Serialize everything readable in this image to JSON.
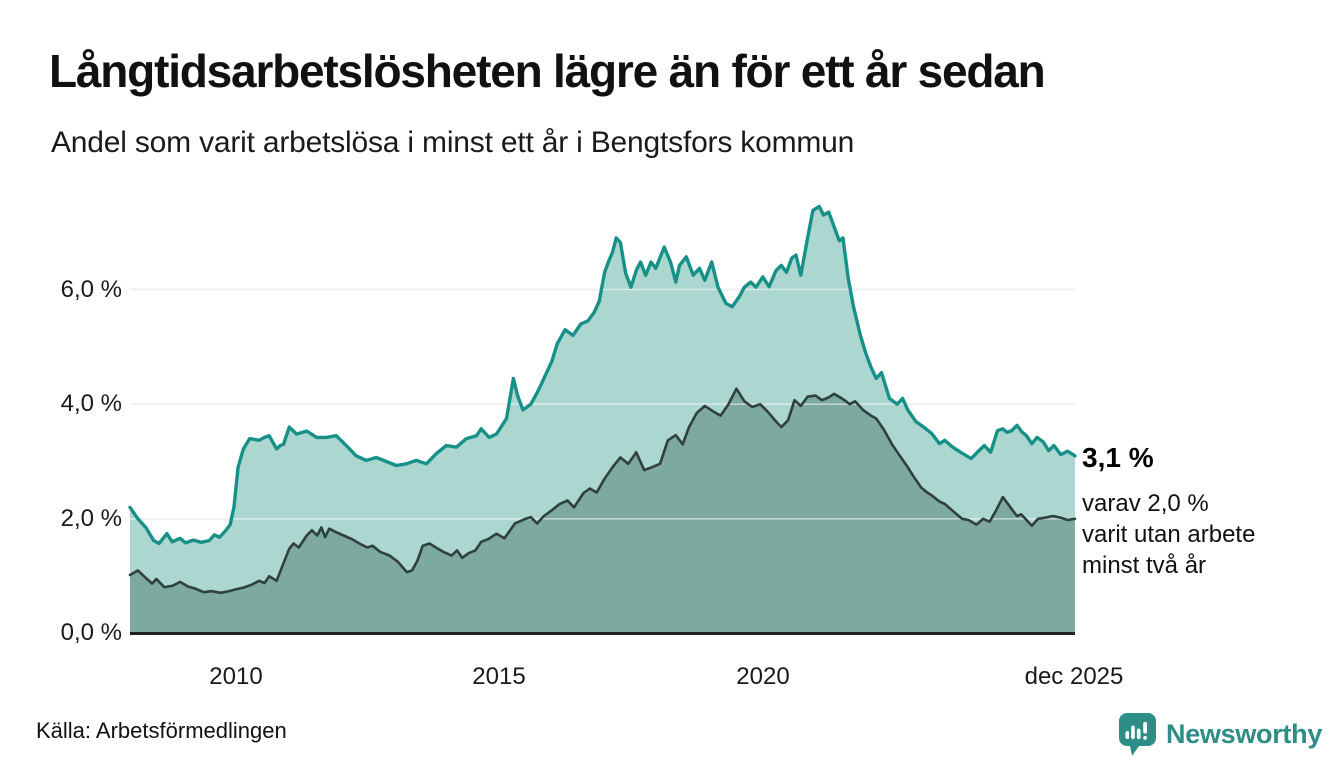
{
  "header": {
    "title": "Långtidsarbetslösheten lägre än för ett år sedan",
    "subtitle": "Andel som varit arbetslösa i minst ett år i Bengtsfors kommun"
  },
  "chart_data": {
    "type": "area",
    "title": "Långtidsarbetslösheten lägre än för ett år sedan",
    "subtitle": "Andel som varit arbetslösa i minst ett år i Bengtsfors kommun",
    "xlabel": "",
    "ylabel": "",
    "legend": "none",
    "grid": true,
    "x_axis": {
      "range": [
        2008,
        2025.92
      ],
      "ticks": [
        {
          "label": "2010",
          "year": 2010
        },
        {
          "label": "2015",
          "year": 2015
        },
        {
          "label": "2020",
          "year": 2020
        },
        {
          "label": "dec 2025",
          "year": 2025.92
        }
      ]
    },
    "y_axis": {
      "unit": "%",
      "range": [
        0,
        7.6
      ],
      "gridlines": [
        2,
        4,
        6
      ],
      "ticks": [
        {
          "label": "0,0 %",
          "value": 0
        },
        {
          "label": "2,0 %",
          "value": 2
        },
        {
          "label": "4,0 %",
          "value": 4
        },
        {
          "label": "6,0 %",
          "value": 6
        }
      ]
    },
    "series": [
      {
        "name": "Arbetslösa minst ett år",
        "stroke": "#179188",
        "fill": "#abd7d0",
        "last_value_label": "3,1 %",
        "points": [
          [
            2008.0,
            2.2
          ],
          [
            2008.15,
            2.0
          ],
          [
            2008.3,
            1.85
          ],
          [
            2008.45,
            1.62
          ],
          [
            2008.55,
            1.57
          ],
          [
            2008.7,
            1.74
          ],
          [
            2008.8,
            1.6
          ],
          [
            2008.95,
            1.66
          ],
          [
            2009.05,
            1.58
          ],
          [
            2009.2,
            1.63
          ],
          [
            2009.35,
            1.59
          ],
          [
            2009.5,
            1.62
          ],
          [
            2009.6,
            1.72
          ],
          [
            2009.7,
            1.68
          ],
          [
            2009.8,
            1.78
          ],
          [
            2009.9,
            1.9
          ],
          [
            2009.97,
            2.2
          ],
          [
            2010.05,
            2.9
          ],
          [
            2010.15,
            3.22
          ],
          [
            2010.27,
            3.4
          ],
          [
            2010.45,
            3.37
          ],
          [
            2010.55,
            3.42
          ],
          [
            2010.64,
            3.45
          ],
          [
            2010.78,
            3.22
          ],
          [
            2010.85,
            3.28
          ],
          [
            2010.91,
            3.3
          ],
          [
            2011.02,
            3.6
          ],
          [
            2011.16,
            3.48
          ],
          [
            2011.35,
            3.53
          ],
          [
            2011.54,
            3.42
          ],
          [
            2011.72,
            3.42
          ],
          [
            2011.91,
            3.45
          ],
          [
            2012.1,
            3.28
          ],
          [
            2012.29,
            3.1
          ],
          [
            2012.48,
            3.02
          ],
          [
            2012.67,
            3.07
          ],
          [
            2012.86,
            3.0
          ],
          [
            2013.05,
            2.93
          ],
          [
            2013.24,
            2.96
          ],
          [
            2013.43,
            3.02
          ],
          [
            2013.62,
            2.96
          ],
          [
            2013.81,
            3.14
          ],
          [
            2014.0,
            3.28
          ],
          [
            2014.19,
            3.25
          ],
          [
            2014.38,
            3.4
          ],
          [
            2014.57,
            3.45
          ],
          [
            2014.66,
            3.57
          ],
          [
            2014.81,
            3.42
          ],
          [
            2014.95,
            3.48
          ],
          [
            2015.14,
            3.75
          ],
          [
            2015.27,
            4.45
          ],
          [
            2015.35,
            4.15
          ],
          [
            2015.45,
            3.9
          ],
          [
            2015.6,
            4.0
          ],
          [
            2015.72,
            4.2
          ],
          [
            2015.8,
            4.35
          ],
          [
            2015.9,
            4.55
          ],
          [
            2016.0,
            4.75
          ],
          [
            2016.1,
            5.05
          ],
          [
            2016.25,
            5.3
          ],
          [
            2016.4,
            5.2
          ],
          [
            2016.55,
            5.4
          ],
          [
            2016.68,
            5.45
          ],
          [
            2016.8,
            5.6
          ],
          [
            2016.9,
            5.8
          ],
          [
            2017.0,
            6.3
          ],
          [
            2017.08,
            6.5
          ],
          [
            2017.15,
            6.65
          ],
          [
            2017.22,
            6.9
          ],
          [
            2017.3,
            6.82
          ],
          [
            2017.4,
            6.28
          ],
          [
            2017.5,
            6.04
          ],
          [
            2017.6,
            6.33
          ],
          [
            2017.68,
            6.48
          ],
          [
            2017.78,
            6.25
          ],
          [
            2017.88,
            6.48
          ],
          [
            2017.97,
            6.37
          ],
          [
            2018.13,
            6.74
          ],
          [
            2018.25,
            6.48
          ],
          [
            2018.35,
            6.13
          ],
          [
            2018.42,
            6.42
          ],
          [
            2018.55,
            6.57
          ],
          [
            2018.68,
            6.25
          ],
          [
            2018.8,
            6.37
          ],
          [
            2018.9,
            6.16
          ],
          [
            2019.03,
            6.48
          ],
          [
            2019.15,
            6.04
          ],
          [
            2019.3,
            5.76
          ],
          [
            2019.42,
            5.7
          ],
          [
            2019.55,
            5.87
          ],
          [
            2019.65,
            6.04
          ],
          [
            2019.77,
            6.13
          ],
          [
            2019.87,
            6.04
          ],
          [
            2020.0,
            6.22
          ],
          [
            2020.12,
            6.05
          ],
          [
            2020.25,
            6.33
          ],
          [
            2020.35,
            6.42
          ],
          [
            2020.45,
            6.3
          ],
          [
            2020.55,
            6.55
          ],
          [
            2020.63,
            6.6
          ],
          [
            2020.72,
            6.25
          ],
          [
            2020.85,
            6.9
          ],
          [
            2020.95,
            7.38
          ],
          [
            2021.07,
            7.45
          ],
          [
            2021.15,
            7.3
          ],
          [
            2021.25,
            7.35
          ],
          [
            2021.35,
            7.1
          ],
          [
            2021.45,
            6.85
          ],
          [
            2021.52,
            6.9
          ],
          [
            2021.62,
            6.2
          ],
          [
            2021.72,
            5.7
          ],
          [
            2021.85,
            5.2
          ],
          [
            2021.95,
            4.9
          ],
          [
            2022.05,
            4.65
          ],
          [
            2022.15,
            4.45
          ],
          [
            2022.25,
            4.55
          ],
          [
            2022.4,
            4.1
          ],
          [
            2022.55,
            4.0
          ],
          [
            2022.65,
            4.1
          ],
          [
            2022.75,
            3.9
          ],
          [
            2022.9,
            3.7
          ],
          [
            2023.05,
            3.6
          ],
          [
            2023.2,
            3.49
          ],
          [
            2023.35,
            3.31
          ],
          [
            2023.45,
            3.37
          ],
          [
            2023.6,
            3.25
          ],
          [
            2023.75,
            3.16
          ],
          [
            2023.95,
            3.05
          ],
          [
            2024.1,
            3.19
          ],
          [
            2024.2,
            3.28
          ],
          [
            2024.32,
            3.16
          ],
          [
            2024.45,
            3.54
          ],
          [
            2024.55,
            3.57
          ],
          [
            2024.63,
            3.51
          ],
          [
            2024.72,
            3.54
          ],
          [
            2024.82,
            3.63
          ],
          [
            2024.92,
            3.51
          ],
          [
            2025.0,
            3.45
          ],
          [
            2025.1,
            3.31
          ],
          [
            2025.2,
            3.42
          ],
          [
            2025.32,
            3.34
          ],
          [
            2025.42,
            3.19
          ],
          [
            2025.52,
            3.28
          ],
          [
            2025.65,
            3.12
          ],
          [
            2025.78,
            3.18
          ],
          [
            2025.92,
            3.1
          ]
        ]
      },
      {
        "name": "Arbetslösa minst två år",
        "stroke": "#2f403e",
        "fill": "#7ea9a1",
        "last_value_label": "2,0 %",
        "points": [
          [
            2008.0,
            1.02
          ],
          [
            2008.15,
            1.1
          ],
          [
            2008.3,
            0.97
          ],
          [
            2008.42,
            0.87
          ],
          [
            2008.5,
            0.95
          ],
          [
            2008.65,
            0.81
          ],
          [
            2008.8,
            0.83
          ],
          [
            2008.95,
            0.9
          ],
          [
            2009.1,
            0.82
          ],
          [
            2009.25,
            0.78
          ],
          [
            2009.4,
            0.72
          ],
          [
            2009.55,
            0.74
          ],
          [
            2009.72,
            0.71
          ],
          [
            2009.88,
            0.74
          ],
          [
            2010.0,
            0.77
          ],
          [
            2010.15,
            0.8
          ],
          [
            2010.3,
            0.85
          ],
          [
            2010.45,
            0.92
          ],
          [
            2010.55,
            0.88
          ],
          [
            2010.64,
            1.0
          ],
          [
            2010.78,
            0.92
          ],
          [
            2010.9,
            1.2
          ],
          [
            2011.02,
            1.48
          ],
          [
            2011.1,
            1.57
          ],
          [
            2011.2,
            1.5
          ],
          [
            2011.35,
            1.71
          ],
          [
            2011.45,
            1.8
          ],
          [
            2011.55,
            1.71
          ],
          [
            2011.63,
            1.85
          ],
          [
            2011.7,
            1.68
          ],
          [
            2011.78,
            1.83
          ],
          [
            2011.9,
            1.77
          ],
          [
            2012.05,
            1.71
          ],
          [
            2012.2,
            1.65
          ],
          [
            2012.35,
            1.57
          ],
          [
            2012.5,
            1.5
          ],
          [
            2012.6,
            1.53
          ],
          [
            2012.75,
            1.42
          ],
          [
            2012.92,
            1.36
          ],
          [
            2013.08,
            1.25
          ],
          [
            2013.25,
            1.07
          ],
          [
            2013.35,
            1.1
          ],
          [
            2013.45,
            1.27
          ],
          [
            2013.55,
            1.53
          ],
          [
            2013.68,
            1.57
          ],
          [
            2013.8,
            1.5
          ],
          [
            2013.95,
            1.42
          ],
          [
            2014.1,
            1.36
          ],
          [
            2014.2,
            1.45
          ],
          [
            2014.3,
            1.32
          ],
          [
            2014.42,
            1.4
          ],
          [
            2014.55,
            1.45
          ],
          [
            2014.66,
            1.6
          ],
          [
            2014.8,
            1.65
          ],
          [
            2014.95,
            1.74
          ],
          [
            2015.1,
            1.66
          ],
          [
            2015.3,
            1.92
          ],
          [
            2015.5,
            2.0
          ],
          [
            2015.6,
            2.03
          ],
          [
            2015.72,
            1.92
          ],
          [
            2015.85,
            2.05
          ],
          [
            2016.0,
            2.15
          ],
          [
            2016.15,
            2.26
          ],
          [
            2016.3,
            2.32
          ],
          [
            2016.42,
            2.2
          ],
          [
            2016.6,
            2.45
          ],
          [
            2016.72,
            2.53
          ],
          [
            2016.85,
            2.46
          ],
          [
            2017.0,
            2.7
          ],
          [
            2017.15,
            2.9
          ],
          [
            2017.3,
            3.07
          ],
          [
            2017.45,
            2.96
          ],
          [
            2017.6,
            3.16
          ],
          [
            2017.75,
            2.85
          ],
          [
            2017.9,
            2.9
          ],
          [
            2018.05,
            2.96
          ],
          [
            2018.2,
            3.37
          ],
          [
            2018.35,
            3.46
          ],
          [
            2018.48,
            3.3
          ],
          [
            2018.6,
            3.6
          ],
          [
            2018.75,
            3.85
          ],
          [
            2018.9,
            3.97
          ],
          [
            2019.05,
            3.88
          ],
          [
            2019.2,
            3.8
          ],
          [
            2019.35,
            4.0
          ],
          [
            2019.5,
            4.27
          ],
          [
            2019.65,
            4.05
          ],
          [
            2019.8,
            3.95
          ],
          [
            2019.95,
            4.0
          ],
          [
            2020.1,
            3.86
          ],
          [
            2020.25,
            3.7
          ],
          [
            2020.35,
            3.6
          ],
          [
            2020.48,
            3.72
          ],
          [
            2020.6,
            4.07
          ],
          [
            2020.72,
            3.97
          ],
          [
            2020.85,
            4.13
          ],
          [
            2021.0,
            4.15
          ],
          [
            2021.12,
            4.07
          ],
          [
            2021.25,
            4.12
          ],
          [
            2021.35,
            4.18
          ],
          [
            2021.5,
            4.1
          ],
          [
            2021.65,
            4.0
          ],
          [
            2021.75,
            4.05
          ],
          [
            2021.9,
            3.9
          ],
          [
            2022.05,
            3.8
          ],
          [
            2022.15,
            3.75
          ],
          [
            2022.3,
            3.55
          ],
          [
            2022.45,
            3.3
          ],
          [
            2022.6,
            3.1
          ],
          [
            2022.75,
            2.9
          ],
          [
            2022.85,
            2.75
          ],
          [
            2023.0,
            2.55
          ],
          [
            2023.1,
            2.47
          ],
          [
            2023.2,
            2.41
          ],
          [
            2023.35,
            2.3
          ],
          [
            2023.45,
            2.26
          ],
          [
            2023.6,
            2.14
          ],
          [
            2023.78,
            2.0
          ],
          [
            2023.9,
            1.98
          ],
          [
            2024.05,
            1.9
          ],
          [
            2024.18,
            2.0
          ],
          [
            2024.3,
            1.95
          ],
          [
            2024.42,
            2.14
          ],
          [
            2024.55,
            2.38
          ],
          [
            2024.65,
            2.26
          ],
          [
            2024.72,
            2.17
          ],
          [
            2024.82,
            2.05
          ],
          [
            2024.9,
            2.08
          ],
          [
            2025.0,
            1.98
          ],
          [
            2025.1,
            1.88
          ],
          [
            2025.22,
            2.0
          ],
          [
            2025.35,
            2.02
          ],
          [
            2025.5,
            2.05
          ],
          [
            2025.65,
            2.02
          ],
          [
            2025.78,
            1.98
          ],
          [
            2025.92,
            2.0
          ]
        ]
      }
    ]
  },
  "annotation": {
    "value_label": "3,1 %",
    "lines": [
      "varav 2,0 %",
      "varit utan arbete",
      "minst två år"
    ]
  },
  "footer": {
    "source": "Källa: Arbetsförmedlingen",
    "brand_name": "Newsworthy",
    "brand_color": "#2c8e87"
  },
  "colors": {
    "accent_teal": "#179188",
    "light_fill": "#abd7d0",
    "dark_fill": "#7ea9a1",
    "dark_stroke": "#2f403e",
    "gridline": "#dedede",
    "gridline_overlay": "rgba(255,255,255,0.5)",
    "axis": "#222222"
  }
}
